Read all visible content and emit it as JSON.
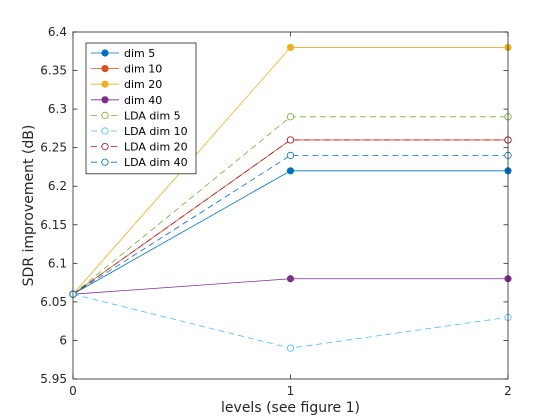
{
  "chart_data": {
    "type": "line",
    "xlabel": "levels (see figure 1)",
    "ylabel": "SDR improvement (dB)",
    "xlim": [
      0,
      2
    ],
    "ylim": [
      5.95,
      6.4
    ],
    "x_ticks": [
      0,
      1,
      2
    ],
    "y_ticks": [
      5.95,
      6,
      6.05,
      6.1,
      6.15,
      6.2,
      6.25,
      6.3,
      6.35,
      6.4
    ],
    "x_tick_labels": [
      "0",
      "1",
      "2"
    ],
    "y_tick_labels": [
      "5.95",
      "6",
      "6.05",
      "6.1",
      "6.15",
      "6.2",
      "6.25",
      "6.3",
      "6.35",
      "6.4"
    ],
    "grid": false,
    "legend_position": "top-left",
    "x": [
      0,
      1,
      2
    ],
    "series": [
      {
        "name": "dim 5",
        "values": [
          6.06,
          6.22,
          6.22
        ],
        "color": "#0072BD",
        "line_style": "solid",
        "marker": "filled-circle"
      },
      {
        "name": "dim 10",
        "values": [
          6.06,
          6.26,
          6.26
        ],
        "color": "#D95319",
        "line_style": "solid",
        "marker": "filled-circle"
      },
      {
        "name": "dim 20",
        "values": [
          6.06,
          6.38,
          6.38
        ],
        "color": "#EDB120",
        "line_style": "solid",
        "marker": "filled-circle"
      },
      {
        "name": "dim 40",
        "values": [
          6.06,
          6.08,
          6.08
        ],
        "color": "#7E2F8E",
        "line_style": "solid",
        "marker": "filled-circle"
      },
      {
        "name": "LDA dim 5",
        "values": [
          6.06,
          6.29,
          6.29
        ],
        "color": "#77AC30",
        "line_style": "dashed",
        "marker": "open-circle"
      },
      {
        "name": "LDA dim 10",
        "values": [
          6.06,
          5.99,
          6.03
        ],
        "color": "#4DBEEE",
        "line_style": "dashed",
        "marker": "open-circle"
      },
      {
        "name": "LDA dim 20",
        "values": [
          6.06,
          6.26,
          6.26
        ],
        "color": "#A2142F",
        "line_style": "dashed",
        "marker": "open-circle"
      },
      {
        "name": "LDA dim 40",
        "values": [
          6.06,
          6.24,
          6.24
        ],
        "color": "#0072BD",
        "line_style": "dashed",
        "marker": "open-circle"
      }
    ]
  }
}
